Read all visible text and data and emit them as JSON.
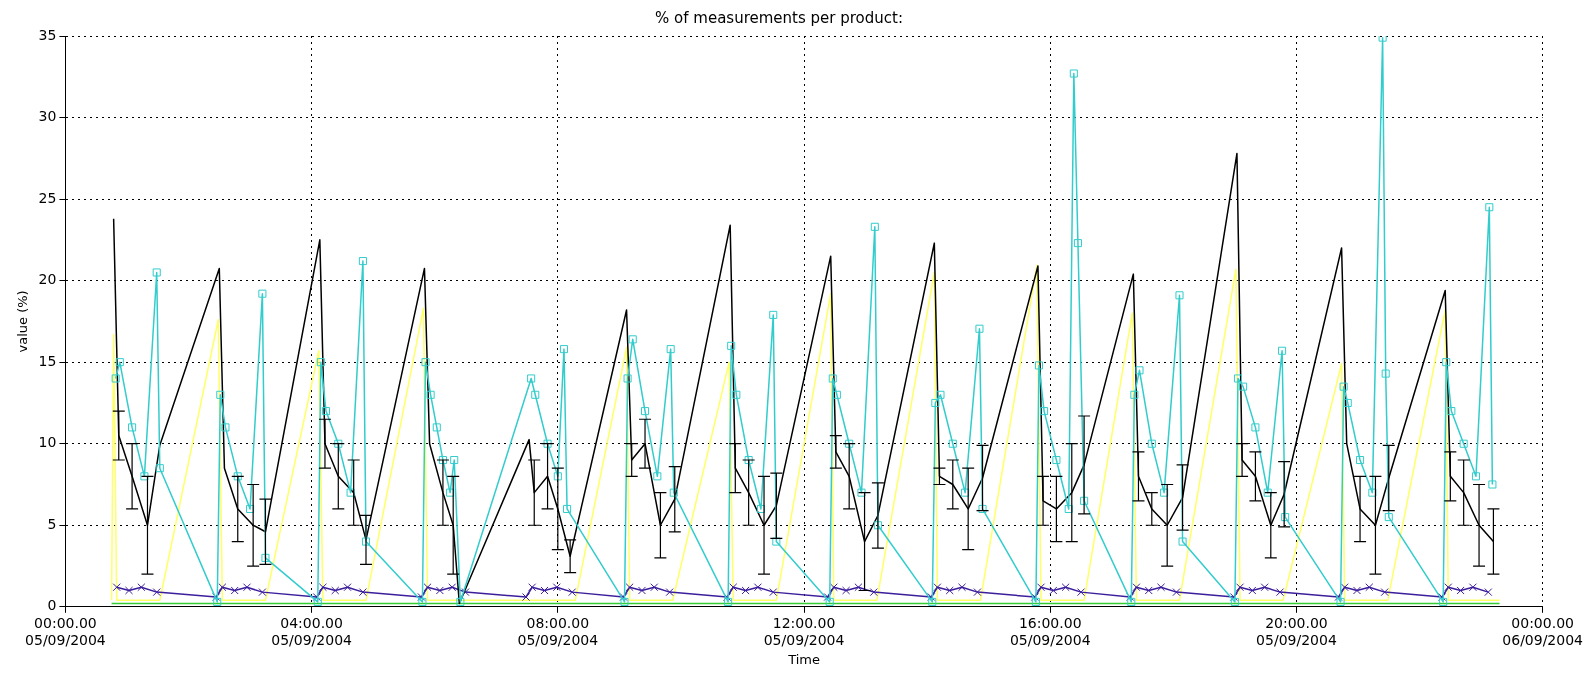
{
  "chart_data": {
    "type": "line",
    "title": "% of measurements per product:",
    "xlabel": "Time",
    "ylabel": "value (%)",
    "xlim": [
      "2004-09-05T00:00",
      "2004-09-06T00:00"
    ],
    "xticks": [
      {
        "value": "2004-09-05T00:00",
        "label": "00:00.00\n05/09/2004"
      },
      {
        "value": "2004-09-05T04:00",
        "label": "04:00.00\n05/09/2004"
      },
      {
        "value": "2004-09-05T08:00",
        "label": "08:00.00\n05/09/2004"
      },
      {
        "value": "2004-09-05T12:00",
        "label": "12:00.00\n05/09/2004"
      },
      {
        "value": "2004-09-05T16:00",
        "label": "16:00.00\n05/09/2004"
      },
      {
        "value": "2004-09-05T20:00",
        "label": "20:00.00\n05/09/2004"
      },
      {
        "value": "2004-09-06T00:00",
        "label": "00:00.00\n06/09/2004"
      }
    ],
    "ylim": [
      0,
      35
    ],
    "yticks": [
      0,
      5,
      10,
      15,
      20,
      25,
      30,
      35
    ],
    "grid": true,
    "legend": false,
    "series": [
      {
        "color": "#ffff66",
        "marker": "none",
        "x": [
          "2004-09-05T00:45",
          "2004-09-05T00:47",
          "2004-09-05T00:50",
          "2004-09-05T01:32",
          "2004-09-05T02:29",
          "2004-09-05T02:33",
          "2004-09-05T03:15",
          "2004-09-05T04:07",
          "2004-09-05T04:11",
          "2004-09-05T04:53",
          "2004-09-05T05:49",
          "2004-09-05T05:53",
          "2004-09-05T06:35",
          "2004-09-05T07:32",
          "2004-09-05T08:17",
          "2004-09-05T09:07",
          "2004-09-05T09:10",
          "2004-09-05T09:52",
          "2004-09-05T10:47",
          "2004-09-05T10:51",
          "2004-09-05T11:33",
          "2004-09-05T12:26",
          "2004-09-05T12:29",
          "2004-09-05T13:11",
          "2004-09-05T14:07",
          "2004-09-05T14:10",
          "2004-09-05T14:52",
          "2004-09-05T15:47",
          "2004-09-05T15:51",
          "2004-09-05T16:33",
          "2004-09-05T17:20",
          "2004-09-05T17:24",
          "2004-09-05T18:06",
          "2004-09-05T19:01",
          "2004-09-05T19:05",
          "2004-09-05T19:47",
          "2004-09-05T20:44",
          "2004-09-05T20:47",
          "2004-09-05T21:29",
          "2004-09-05T22:25",
          "2004-09-05T22:28",
          "2004-09-05T23:18"
        ],
        "values": [
          0.4,
          16.7,
          0.4,
          0.4,
          17.6,
          0.4,
          0.4,
          15.7,
          0.4,
          0.4,
          18.3,
          0.4,
          0.4,
          0.4,
          0.4,
          15.9,
          0.4,
          0.4,
          15.0,
          0.4,
          0.4,
          19.2,
          0.4,
          0.4,
          20.5,
          0.4,
          0.4,
          20.95,
          0.4,
          0.4,
          18,
          0.4,
          0.4,
          20.7,
          0.4,
          0.4,
          14.9,
          0.4,
          0.4,
          18.2,
          0.4,
          0.4
        ]
      },
      {
        "color": "#33cc33",
        "marker": "none",
        "x": [
          "2004-09-05T00:45",
          "2004-09-05T23:18"
        ],
        "values": [
          0.2,
          0.2
        ]
      },
      {
        "color": "#3c1e9c",
        "marker": "cross",
        "x": [
          "2004-09-05T00:50",
          "2004-09-05T01:02",
          "2004-09-05T01:14",
          "2004-09-05T01:29",
          "2004-09-05T02:27",
          "2004-09-05T02:33",
          "2004-09-05T02:45",
          "2004-09-05T02:57",
          "2004-09-05T03:12",
          "2004-09-05T04:05",
          "2004-09-05T04:11",
          "2004-09-05T04:23",
          "2004-09-05T04:35",
          "2004-09-05T04:50",
          "2004-09-05T05:47",
          "2004-09-05T05:53",
          "2004-09-05T06:05",
          "2004-09-05T06:17",
          "2004-09-05T06:30",
          "2004-09-05T07:29",
          "2004-09-05T07:35",
          "2004-09-05T07:47",
          "2004-09-05T07:59",
          "2004-09-05T08:14",
          "2004-09-05T09:04",
          "2004-09-05T09:10",
          "2004-09-05T09:22",
          "2004-09-05T09:34",
          "2004-09-05T09:49",
          "2004-09-05T10:45",
          "2004-09-05T10:51",
          "2004-09-05T11:03",
          "2004-09-05T11:15",
          "2004-09-05T11:30",
          "2004-09-05T12:23",
          "2004-09-05T12:29",
          "2004-09-05T12:41",
          "2004-09-05T12:53",
          "2004-09-05T13:08",
          "2004-09-05T14:04",
          "2004-09-05T14:10",
          "2004-09-05T14:22",
          "2004-09-05T14:34",
          "2004-09-05T14:49",
          "2004-09-05T15:45",
          "2004-09-05T15:51",
          "2004-09-05T16:03",
          "2004-09-05T16:15",
          "2004-09-05T16:30",
          "2004-09-05T17:18",
          "2004-09-05T17:24",
          "2004-09-05T17:36",
          "2004-09-05T17:48",
          "2004-09-05T18:03",
          "2004-09-05T18:59",
          "2004-09-05T19:05",
          "2004-09-05T19:17",
          "2004-09-05T19:29",
          "2004-09-05T19:44",
          "2004-09-05T20:41",
          "2004-09-05T20:47",
          "2004-09-05T20:59",
          "2004-09-05T21:11",
          "2004-09-05T21:26",
          "2004-09-05T22:22",
          "2004-09-05T22:28",
          "2004-09-05T22:40",
          "2004-09-05T22:52",
          "2004-09-05T23:07"
        ],
        "values": [
          1.2,
          1.0,
          1.2,
          0.9,
          0.6,
          1.2,
          1.0,
          1.2,
          0.9,
          0.6,
          1.2,
          1.0,
          1.2,
          0.9,
          0.6,
          1.2,
          1.0,
          1.2,
          0.9,
          0.6,
          1.2,
          1.0,
          1.2,
          0.9,
          0.6,
          1.2,
          1.0,
          1.2,
          0.9,
          0.6,
          1.2,
          1.0,
          1.2,
          0.9,
          0.6,
          1.2,
          1.0,
          1.2,
          0.9,
          0.6,
          1.2,
          1.0,
          1.2,
          0.9,
          0.6,
          1.2,
          1.0,
          1.2,
          0.9,
          0.6,
          1.2,
          1.0,
          1.2,
          0.9,
          0.6,
          1.2,
          1.0,
          1.2,
          0.9,
          0.6,
          1.2,
          1.0,
          1.2,
          0.9,
          0.6,
          1.2,
          1.0,
          1.2,
          0.9
        ]
      },
      {
        "color": "#000000",
        "marker": "none",
        "x": [
          "2004-09-05T00:47",
          "2004-09-05T00:52",
          "2004-09-05T01:05",
          "2004-09-05T01:20",
          "2004-09-05T01:32",
          "2004-09-05T02:30",
          "2004-09-05T02:35",
          "2004-09-05T02:48",
          "2004-09-05T03:03",
          "2004-09-05T03:15",
          "2004-09-05T04:08",
          "2004-09-05T04:13",
          "2004-09-05T04:26",
          "2004-09-05T04:41",
          "2004-09-05T04:53",
          "2004-09-05T05:50",
          "2004-09-05T05:55",
          "2004-09-05T06:08",
          "2004-09-05T06:18",
          "2004-09-05T06:24",
          "2004-09-05T07:32",
          "2004-09-05T07:37",
          "2004-09-05T07:50",
          "2004-09-05T08:00",
          "2004-09-05T08:12",
          "2004-09-05T09:07",
          "2004-09-05T09:12",
          "2004-09-05T09:25",
          "2004-09-05T09:40",
          "2004-09-05T09:54",
          "2004-09-05T10:48",
          "2004-09-05T10:53",
          "2004-09-05T11:06",
          "2004-09-05T11:21",
          "2004-09-05T11:33",
          "2004-09-05T12:26",
          "2004-09-05T12:31",
          "2004-09-05T12:44",
          "2004-09-05T12:59",
          "2004-09-05T13:12",
          "2004-09-05T14:07",
          "2004-09-05T14:12",
          "2004-09-05T14:25",
          "2004-09-05T14:40",
          "2004-09-05T14:54",
          "2004-09-05T15:48",
          "2004-09-05T15:53",
          "2004-09-05T16:06",
          "2004-09-05T16:21",
          "2004-09-05T16:33",
          "2004-09-05T17:21",
          "2004-09-05T17:26",
          "2004-09-05T17:39",
          "2004-09-05T17:54",
          "2004-09-05T18:09",
          "2004-09-05T19:02",
          "2004-09-05T19:07",
          "2004-09-05T19:20",
          "2004-09-05T19:35",
          "2004-09-05T19:48",
          "2004-09-05T20:44",
          "2004-09-05T20:49",
          "2004-09-05T21:02",
          "2004-09-05T21:17",
          "2004-09-05T21:30",
          "2004-09-05T22:25",
          "2004-09-05T22:30",
          "2004-09-05T22:43",
          "2004-09-05T22:58",
          "2004-09-05T23:12"
        ],
        "values": [
          23.8,
          10.5,
          8,
          5,
          9.9,
          20.75,
          8.5,
          6,
          5,
          4.6,
          22.5,
          10,
          8,
          7,
          4.1,
          20.75,
          10,
          7,
          5,
          0.2,
          10.25,
          7,
          8,
          6,
          3.1,
          18.2,
          9,
          10,
          5,
          6.6,
          23.4,
          8.5,
          7,
          5,
          6.2,
          21.5,
          9.5,
          8,
          4,
          5.6,
          22.3,
          8,
          7.5,
          6,
          7.9,
          20.9,
          6.5,
          6,
          7,
          8.7,
          20.4,
          8,
          6,
          5,
          6.7,
          27.8,
          9,
          8,
          5,
          6.9,
          22,
          10,
          6,
          5,
          7.9,
          19.4,
          8,
          7,
          5,
          4
        ],
        "errors": [
          null,
          1.5,
          2,
          3,
          null,
          null,
          null,
          2,
          2.5,
          2,
          null,
          1.5,
          2,
          2,
          1.5,
          null,
          null,
          2,
          3,
          null,
          null,
          2,
          2,
          2.5,
          1,
          null,
          1,
          1.5,
          2,
          2,
          null,
          1.5,
          2,
          3,
          2,
          null,
          1,
          2,
          3,
          2,
          null,
          0.5,
          1.5,
          2.5,
          2,
          null,
          1.5,
          2,
          3,
          3,
          null,
          1.5,
          1,
          2.5,
          2,
          null,
          1,
          1.5,
          2,
          2,
          null,
          null,
          2,
          3,
          2,
          null,
          1.5,
          2,
          2.5,
          2
        ]
      },
      {
        "color": "#33cccc",
        "marker": "square",
        "x": [
          "2004-09-05T00:49",
          "2004-09-05T00:53",
          "2004-09-05T01:05",
          "2004-09-05T01:17",
          "2004-09-05T01:29",
          "2004-09-05T01:32",
          "2004-09-05T02:28",
          "2004-09-05T02:31",
          "2004-09-05T02:36",
          "2004-09-05T02:48",
          "2004-09-05T03:00",
          "2004-09-05T03:12",
          "2004-09-05T03:15",
          "2004-09-05T04:06",
          "2004-09-05T04:09",
          "2004-09-05T04:14",
          "2004-09-05T04:26",
          "2004-09-05T04:38",
          "2004-09-05T04:50",
          "2004-09-05T04:53",
          "2004-09-05T05:48",
          "2004-09-05T05:51",
          "2004-09-05T05:56",
          "2004-09-05T06:02",
          "2004-09-05T06:08",
          "2004-09-05T06:15",
          "2004-09-05T06:19",
          "2004-09-05T06:25",
          "2004-09-05T07:34",
          "2004-09-05T07:38",
          "2004-09-05T07:50",
          "2004-09-05T08:00",
          "2004-09-05T08:06",
          "2004-09-05T08:09",
          "2004-09-05T09:05",
          "2004-09-05T09:08",
          "2004-09-05T09:13",
          "2004-09-05T09:25",
          "2004-09-05T09:37",
          "2004-09-05T09:50",
          "2004-09-05T09:53",
          "2004-09-05T10:46",
          "2004-09-05T10:49",
          "2004-09-05T10:54",
          "2004-09-05T11:06",
          "2004-09-05T11:18",
          "2004-09-05T11:30",
          "2004-09-05T11:33",
          "2004-09-05T12:25",
          "2004-09-05T12:28",
          "2004-09-05T12:32",
          "2004-09-05T12:44",
          "2004-09-05T12:56",
          "2004-09-05T13:09",
          "2004-09-05T13:12",
          "2004-09-05T14:05",
          "2004-09-05T14:08",
          "2004-09-05T14:13",
          "2004-09-05T14:25",
          "2004-09-05T14:37",
          "2004-09-05T14:51",
          "2004-09-05T14:54",
          "2004-09-05T15:46",
          "2004-09-05T15:49",
          "2004-09-05T15:54",
          "2004-09-05T16:06",
          "2004-09-05T16:18",
          "2004-09-05T16:23",
          "2004-09-05T16:27",
          "2004-09-05T16:33",
          "2004-09-05T17:19",
          "2004-09-05T17:22",
          "2004-09-05T17:27",
          "2004-09-05T17:39",
          "2004-09-05T17:51",
          "2004-09-05T18:06",
          "2004-09-05T18:09",
          "2004-09-05T19:00",
          "2004-09-05T19:03",
          "2004-09-05T19:08",
          "2004-09-05T19:20",
          "2004-09-05T19:32",
          "2004-09-05T19:46",
          "2004-09-05T19:49",
          "2004-09-05T20:43",
          "2004-09-05T20:46",
          "2004-09-05T20:50",
          "2004-09-05T21:02",
          "2004-09-05T21:14",
          "2004-09-05T21:24",
          "2004-09-05T21:27",
          "2004-09-05T21:30",
          "2004-09-05T22:23",
          "2004-09-05T22:26",
          "2004-09-05T22:31",
          "2004-09-05T22:43",
          "2004-09-05T22:55",
          "2004-09-05T23:08",
          "2004-09-05T23:11"
        ],
        "values": [
          14,
          15,
          11,
          8,
          20.5,
          8.5,
          0.3,
          13,
          11,
          8,
          6,
          19.2,
          3,
          0.3,
          15,
          12,
          10,
          7,
          21.2,
          4,
          0.3,
          15,
          13,
          11,
          9,
          7,
          9,
          0.3,
          14,
          13,
          10,
          8,
          15.8,
          6,
          0.3,
          14,
          16.4,
          12,
          8,
          15.8,
          7,
          0.3,
          16,
          13,
          9,
          6,
          17.9,
          4,
          0.3,
          14,
          13,
          10,
          7,
          23.3,
          5,
          0.3,
          12.5,
          13,
          10,
          7,
          17.05,
          6,
          0.3,
          14.8,
          12,
          9,
          6,
          32.7,
          22.3,
          6.5,
          0.3,
          13,
          14.5,
          10,
          7,
          19.1,
          4,
          0.3,
          14,
          13.5,
          11,
          7,
          15.7,
          5.5,
          0.3,
          13.5,
          12.5,
          9,
          7,
          34.9,
          14.3,
          5.5,
          0.3,
          15,
          12,
          10,
          8,
          24.5,
          7.5
        ]
      }
    ]
  }
}
